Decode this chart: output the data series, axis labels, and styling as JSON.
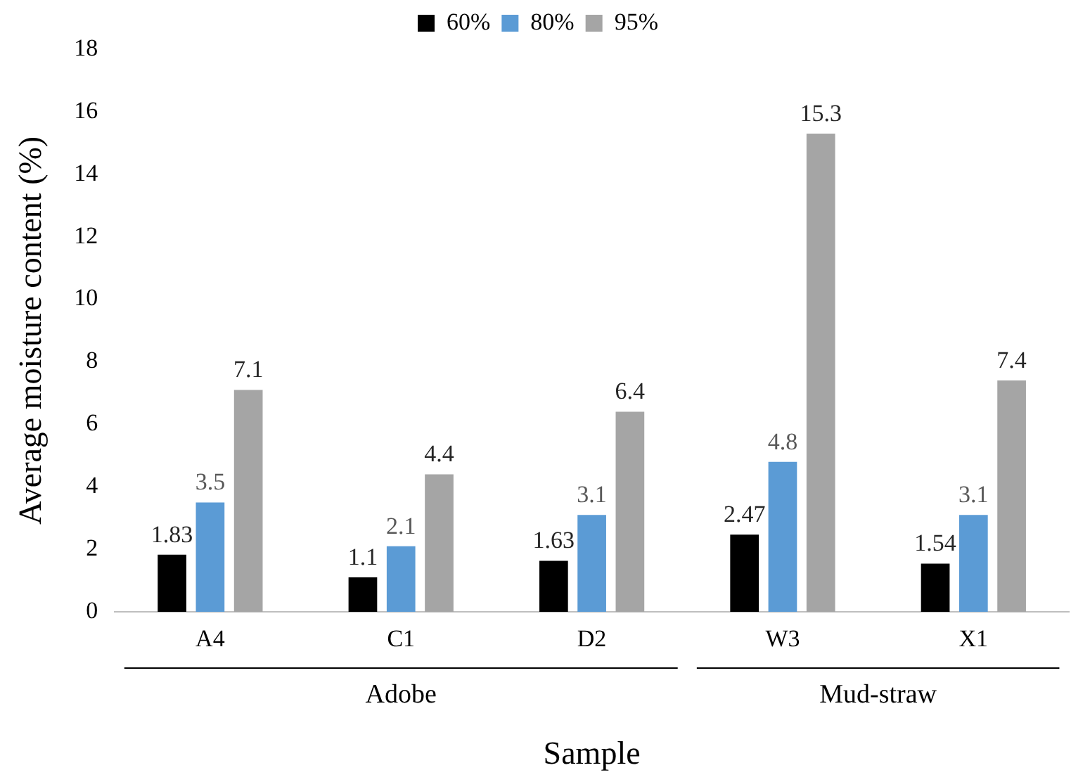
{
  "chart_data": {
    "type": "bar",
    "xlabel": "Sample",
    "ylabel": "Average moisture content (%)",
    "categories": [
      "A4",
      "C1",
      "D2",
      "W3",
      "X1"
    ],
    "series": [
      {
        "name": "60%",
        "color": "#000000",
        "values": [
          1.83,
          1.1,
          1.63,
          2.47,
          1.54
        ]
      },
      {
        "name": "80%",
        "color": "#5b9bd5",
        "values": [
          3.5,
          2.1,
          3.1,
          4.8,
          3.1
        ]
      },
      {
        "name": "95%",
        "color": "#a5a5a5",
        "values": [
          7.1,
          4.4,
          6.4,
          15.3,
          7.4
        ]
      }
    ],
    "ylim": [
      0,
      18
    ],
    "yticks": [
      0,
      2,
      4,
      6,
      8,
      10,
      12,
      14,
      16,
      18
    ],
    "grid": false,
    "legend": "top",
    "data_labels": true,
    "annotations": [
      "Adobe",
      "Mud-straw"
    ]
  }
}
